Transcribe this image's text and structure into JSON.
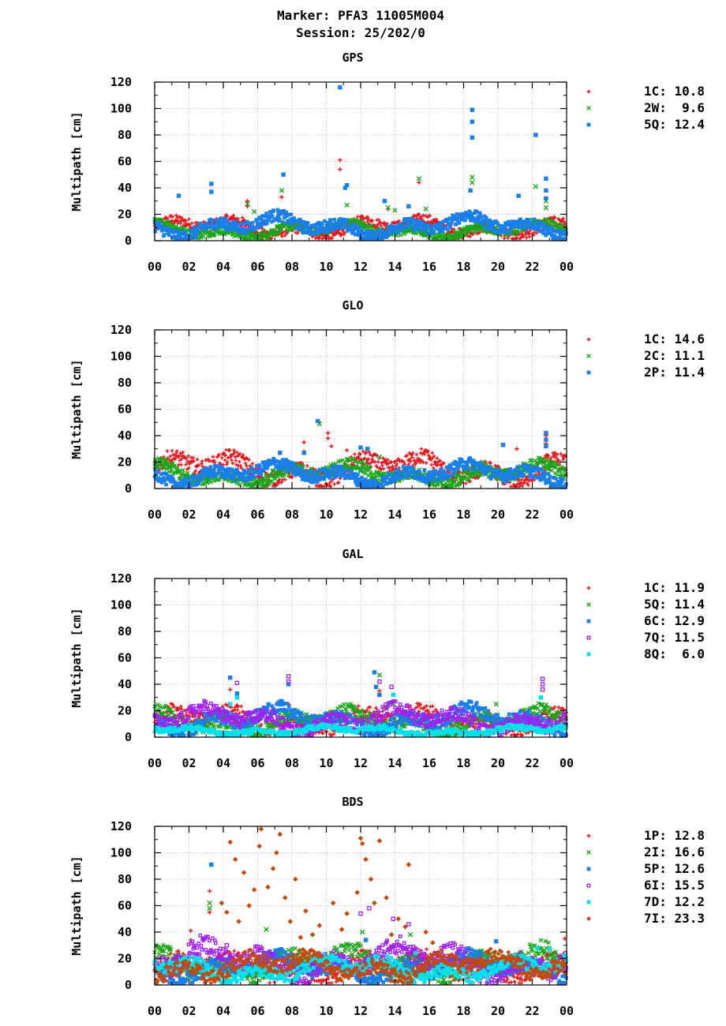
{
  "header": {
    "line1": "Marker: PFA3 11005M004",
    "line2": "Session: 25/202/0"
  },
  "colors": {
    "1C_red": "#e8141c",
    "green": "#1aa51a",
    "blue": "#1a7fe8",
    "purple": "#a020f0",
    "cyan": "#00e0e8",
    "brown": "#c04a10"
  },
  "chart_data": [
    {
      "type": "scatter",
      "title": "GPS",
      "ylabel": "Multipath [cm]",
      "ylim": [
        0,
        120
      ],
      "yticks": [
        "0",
        "20",
        "40",
        "60",
        "80",
        "100",
        "120"
      ],
      "xticks": [
        "00",
        "02",
        "04",
        "06",
        "08",
        "10",
        "12",
        "14",
        "16",
        "18",
        "20",
        "22",
        "00"
      ],
      "grid": true,
      "legend_position": "right",
      "series": [
        {
          "name": "1C",
          "rms": "10.8",
          "marker": "plus",
          "color": "#e8141c",
          "level": 10,
          "spikes": [
            [
              5.4,
              30
            ],
            [
              5.4,
              26
            ],
            [
              7.4,
              33
            ],
            [
              10.8,
              61
            ],
            [
              10.8,
              54
            ],
            [
              15.4,
              44
            ],
            [
              13.6,
              24
            ]
          ]
        },
        {
          "name": "2W",
          "rms": " 9.6",
          "marker": "cross",
          "color": "#1aa51a",
          "level": 8,
          "spikes": [
            [
              5.4,
              28
            ],
            [
              5.8,
              22
            ],
            [
              7.4,
              38
            ],
            [
              11.2,
              27
            ],
            [
              13.6,
              25
            ],
            [
              14.0,
              23
            ],
            [
              15.4,
              47
            ],
            [
              15.8,
              24
            ],
            [
              18.5,
              48
            ],
            [
              18.5,
              44
            ],
            [
              22.2,
              41
            ],
            [
              22.8,
              30
            ],
            [
              22.8,
              25
            ]
          ]
        },
        {
          "name": "5Q",
          "rms": "12.4",
          "marker": "square",
          "color": "#1a7fe8",
          "level": 11,
          "spikes": [
            [
              1.4,
              34
            ],
            [
              3.3,
              43
            ],
            [
              3.3,
              37
            ],
            [
              7.5,
              50
            ],
            [
              7.2,
              18
            ],
            [
              10.8,
              116
            ],
            [
              11.2,
              42
            ],
            [
              11.1,
              40
            ],
            [
              13.4,
              30
            ],
            [
              14.8,
              26
            ],
            [
              18.5,
              99
            ],
            [
              18.5,
              90
            ],
            [
              18.5,
              78
            ],
            [
              18.4,
              38
            ],
            [
              21.2,
              34
            ],
            [
              22.2,
              80
            ],
            [
              22.8,
              47
            ],
            [
              22.8,
              38
            ],
            [
              22.8,
              32
            ]
          ]
        }
      ]
    },
    {
      "type": "scatter",
      "title": "GLO",
      "ylabel": "Multipath [cm]",
      "ylim": [
        0,
        120
      ],
      "yticks": [
        "0",
        "20",
        "40",
        "60",
        "80",
        "100",
        "120"
      ],
      "xticks": [
        "00",
        "02",
        "04",
        "06",
        "08",
        "10",
        "12",
        "14",
        "16",
        "18",
        "20",
        "22",
        "00"
      ],
      "grid": true,
      "legend_position": "right",
      "series": [
        {
          "name": "1C",
          "rms": "14.6",
          "marker": "plus",
          "color": "#e8141c",
          "level": 15,
          "spikes": [
            [
              8.7,
              35
            ],
            [
              8.7,
              28
            ],
            [
              9.6,
              50
            ],
            [
              10.1,
              42
            ],
            [
              10.1,
              38
            ],
            [
              10.3,
              32
            ],
            [
              11.2,
              29
            ],
            [
              21.1,
              30
            ],
            [
              22.8,
              40
            ],
            [
              22.8,
              34
            ],
            [
              22.8,
              25
            ]
          ]
        },
        {
          "name": "2C",
          "rms": "11.1",
          "marker": "cross",
          "color": "#1aa51a",
          "level": 11,
          "spikes": [
            [
              7.3,
              20
            ],
            [
              9.6,
              49
            ],
            [
              13.1,
              24
            ],
            [
              19.1,
              20
            ]
          ]
        },
        {
          "name": "2P",
          "rms": "11.4",
          "marker": "square",
          "color": "#1a7fe8",
          "level": 11,
          "spikes": [
            [
              7.3,
              27
            ],
            [
              8.7,
              27
            ],
            [
              9.5,
              51
            ],
            [
              12.0,
              31
            ],
            [
              12.4,
              30
            ],
            [
              20.3,
              33
            ],
            [
              22.8,
              42
            ],
            [
              22.8,
              37
            ],
            [
              22.8,
              32
            ]
          ]
        }
      ]
    },
    {
      "type": "scatter",
      "title": "GAL",
      "ylabel": "Multipath [cm]",
      "ylim": [
        0,
        120
      ],
      "yticks": [
        "0",
        "20",
        "40",
        "60",
        "80",
        "100",
        "120"
      ],
      "xticks": [
        "00",
        "02",
        "04",
        "06",
        "08",
        "10",
        "12",
        "14",
        "16",
        "18",
        "20",
        "22",
        "00"
      ],
      "grid": true,
      "legend_position": "right",
      "series": [
        {
          "name": "1C",
          "rms": "11.9",
          "marker": "plus",
          "color": "#e8141c",
          "level": 13,
          "spikes": [
            [
              4.4,
              36
            ],
            [
              4.8,
              24
            ],
            [
              7.8,
              25
            ],
            [
              12.9,
              22
            ],
            [
              13.1,
              35
            ]
          ]
        },
        {
          "name": "5Q",
          "rms": "11.4",
          "marker": "cross",
          "color": "#1aa51a",
          "level": 12,
          "spikes": [
            [
              13.1,
              47
            ],
            [
              13.5,
              22
            ],
            [
              13.9,
              25
            ],
            [
              19.9,
              25
            ]
          ]
        },
        {
          "name": "6C",
          "rms": "12.9",
          "marker": "square",
          "color": "#1a7fe8",
          "level": 13,
          "spikes": [
            [
              4.4,
              45
            ],
            [
              4.8,
              33
            ],
            [
              7.8,
              40
            ],
            [
              12.8,
              49
            ],
            [
              12.9,
              38
            ],
            [
              13.1,
              32
            ]
          ]
        },
        {
          "name": "7Q",
          "rms": "11.5",
          "marker": "square_open",
          "color": "#a020f0",
          "level": 13,
          "spikes": [
            [
              4.8,
              41
            ],
            [
              7.8,
              46
            ],
            [
              7.8,
              42
            ],
            [
              13.1,
              42
            ],
            [
              13.8,
              38
            ],
            [
              22.6,
              44
            ],
            [
              22.6,
              40
            ],
            [
              22.6,
              36
            ]
          ]
        },
        {
          "name": "8Q",
          "rms": " 6.0",
          "marker": "square",
          "color": "#00e0e8",
          "level": 5,
          "spikes": [
            [
              4.4,
              25
            ],
            [
              4.8,
              30
            ],
            [
              13.9,
              32
            ],
            [
              22.5,
              30
            ]
          ]
        }
      ]
    },
    {
      "type": "scatter",
      "title": "BDS",
      "ylabel": "Multipath [cm]",
      "ylim": [
        0,
        120
      ],
      "yticks": [
        "0",
        "20",
        "40",
        "60",
        "80",
        "100",
        "120"
      ],
      "xticks": [
        "00",
        "02",
        "04",
        "06",
        "08",
        "10",
        "12",
        "14",
        "16",
        "18",
        "20",
        "22",
        "00"
      ],
      "grid": true,
      "legend_position": "right",
      "series": [
        {
          "name": "1P",
          "rms": "12.8",
          "marker": "plus",
          "color": "#e8141c",
          "level": 14,
          "spikes": [
            [
              2.1,
              41
            ],
            [
              2.1,
              34
            ],
            [
              3.2,
              71
            ],
            [
              3.2,
              55
            ],
            [
              23.9,
              35
            ]
          ]
        },
        {
          "name": "2I",
          "rms": "16.6",
          "marker": "cross",
          "color": "#1aa51a",
          "level": 16,
          "spikes": [
            [
              3.2,
              62
            ],
            [
              3.2,
              58
            ],
            [
              6.5,
              42
            ],
            [
              12.1,
              40
            ],
            [
              14.9,
              38
            ]
          ]
        },
        {
          "name": "5P",
          "rms": "12.6",
          "marker": "square",
          "color": "#1a7fe8",
          "level": 13,
          "spikes": [
            [
              3.3,
              91
            ],
            [
              12.3,
              34
            ],
            [
              19.9,
              33
            ]
          ]
        },
        {
          "name": "6I",
          "rms": "15.5",
          "marker": "square_open",
          "color": "#a020f0",
          "level": 18,
          "spikes": [
            [
              4.2,
              30
            ],
            [
              12.0,
              54
            ],
            [
              12.5,
              58
            ],
            [
              13.9,
              50
            ],
            [
              14.8,
              46
            ]
          ]
        },
        {
          "name": "7D",
          "rms": "12.2",
          "marker": "square",
          "color": "#00e0e8",
          "level": 12,
          "spikes": [
            [
              22.3,
              28
            ],
            [
              23.0,
              27
            ],
            [
              15.2,
              24
            ]
          ]
        },
        {
          "name": "7I",
          "rms": "23.3",
          "marker": "diamond",
          "color": "#c04a10",
          "level": 14,
          "spikes": [
            [
              4.4,
              108
            ],
            [
              4.7,
              95
            ],
            [
              5.2,
              85
            ],
            [
              6.2,
              118
            ],
            [
              6.1,
              105
            ],
            [
              7.3,
              114
            ],
            [
              7.1,
              100
            ],
            [
              8.2,
              80
            ],
            [
              12.0,
              111
            ],
            [
              12.1,
              107
            ],
            [
              12.3,
              95
            ],
            [
              13.1,
              109
            ],
            [
              14.8,
              91
            ],
            [
              5.8,
              72
            ],
            [
              6.9,
              88
            ],
            [
              12.6,
              80
            ],
            [
              3.9,
              62
            ],
            [
              4.2,
              55
            ],
            [
              4.9,
              48
            ],
            [
              5.5,
              60
            ],
            [
              6.6,
              74
            ],
            [
              7.6,
              66
            ],
            [
              8.8,
              56
            ],
            [
              9.6,
              45
            ],
            [
              10.4,
              62
            ],
            [
              11.2,
              54
            ],
            [
              11.8,
              70
            ],
            [
              12.8,
              62
            ],
            [
              13.5,
              66
            ],
            [
              14.2,
              50
            ],
            [
              14.6,
              44
            ],
            [
              15.8,
              40
            ],
            [
              16.2,
              32
            ],
            [
              9.2,
              38
            ],
            [
              10.9,
              42
            ],
            [
              13.8,
              38
            ],
            [
              7.9,
              48
            ],
            [
              8.5,
              36
            ]
          ]
        }
      ]
    }
  ]
}
